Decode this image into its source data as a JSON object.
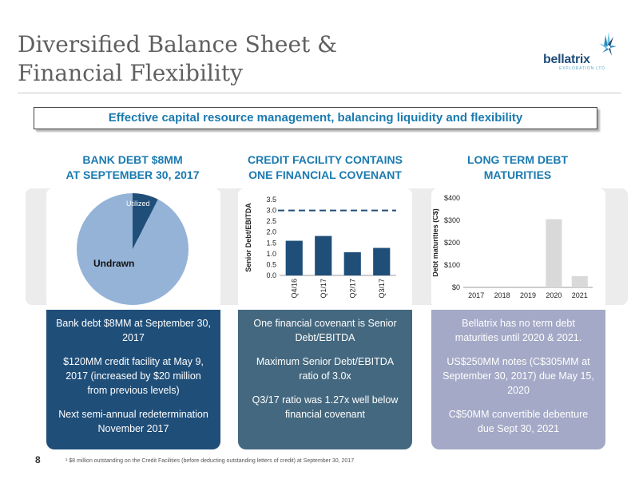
{
  "header": {
    "title_line1": "Diversified Balance Sheet &",
    "title_line2": "Financial Flexibility",
    "logo_name": "bellatrix",
    "logo_sub": "EXPLORATION LTD"
  },
  "banner": "Effective capital resource management, balancing liquidity and flexibility",
  "columns": [
    {
      "head1": "BANK DEBT $8MM",
      "head2": "AT SEPTEMBER 30, 2017"
    },
    {
      "head1": "CREDIT FACILITY CONTAINS",
      "head2": "ONE FINANCIAL COVENANT"
    },
    {
      "head1": "LONG TERM DEBT",
      "head2": "MATURITIES"
    }
  ],
  "chart_data": [
    {
      "type": "pie",
      "slices": [
        {
          "label": "Utilized",
          "value": 7.5,
          "color": "#1f4e79"
        },
        {
          "label": "Undrawn",
          "value": 92.5,
          "color": "#95b3d7"
        }
      ]
    },
    {
      "type": "bar",
      "categories": [
        "Q4/16",
        "Q1/17",
        "Q2/17",
        "Q3/17"
      ],
      "values": [
        1.6,
        1.82,
        1.07,
        1.27
      ],
      "ylabel": "Senior Debt/EBITDA",
      "ylim": [
        0,
        3.5
      ],
      "yticks": [
        "0.0",
        "0.5",
        "1.0",
        "1.5",
        "2.0",
        "2.5",
        "3.0",
        "3.5"
      ],
      "covenant_line": 3.0,
      "color": "#1f4e79",
      "grid": false
    },
    {
      "type": "bar",
      "categories": [
        "2017",
        "2018",
        "2019",
        "2020",
        "2021"
      ],
      "values": [
        0,
        0,
        0,
        305,
        50
      ],
      "ylabel": "Debt maturities (C$)",
      "ylim": [
        0,
        400
      ],
      "yticks": [
        "$0",
        "$100",
        "$200",
        "$300",
        "$400"
      ],
      "color": "#d9d9d9",
      "grid": false
    }
  ],
  "boxes": [
    {
      "color": "#1f4e79",
      "paras": [
        "Bank debt $8MM at September 30, 2017",
        "$120MM credit facility at May 9, 2017 (increased by $20 million from previous levels)",
        "Next semi-annual redetermination November 2017"
      ]
    },
    {
      "color": "#44687f",
      "paras": [
        "One financial covenant is Senior Debt/EBITDA",
        "Maximum Senior Debt/EBITDA ratio of 3.0x",
        "Q3/17 ratio was 1.27x well below financial covenant"
      ]
    },
    {
      "color": "#a3a9c6",
      "paras": [
        "Bellatrix has no term debt maturities until 2020 & 2021.",
        "US$250MM notes (C$305MM at September 30, 2017) due May 15, 2020",
        "C$50MM convertible debenture due Sept 30, 2021"
      ]
    }
  ],
  "footer": {
    "page": "8",
    "footnote": "¹ $8 million outstanding on the Credit Facilities (before deducting outstanding letters of credit) at September 30, 2017"
  }
}
